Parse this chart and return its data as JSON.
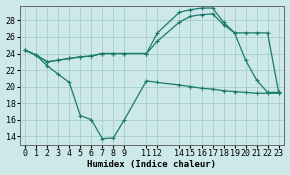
{
  "xlabel": "Humidex (Indice chaleur)",
  "bg_color": "#cce8e8",
  "grid_color": "#aacccc",
  "line_color": "#1a7a6e",
  "xlim": [
    -0.5,
    23.5
  ],
  "ylim": [
    13.0,
    29.8
  ],
  "yticks": [
    14,
    16,
    18,
    20,
    22,
    24,
    26,
    28
  ],
  "xtick_positions": [
    0,
    1,
    2,
    3,
    4,
    5,
    6,
    7,
    8,
    9,
    11,
    12,
    14,
    15,
    16,
    17,
    18,
    19,
    20,
    21,
    22,
    23
  ],
  "xtick_labels": [
    "0",
    "1",
    "2",
    "3",
    "4",
    "5",
    "6",
    "7",
    "8",
    "9",
    "11",
    "12",
    "14",
    "15",
    "16",
    "17",
    "18",
    "19",
    "20",
    "21",
    "22",
    "23"
  ],
  "line1_x": [
    0,
    1,
    2,
    3,
    4,
    5,
    6,
    7,
    8,
    9,
    11,
    12,
    14,
    15,
    16,
    17,
    18,
    19,
    20,
    21,
    22,
    23
  ],
  "line1_y": [
    24.4,
    23.8,
    23.0,
    23.2,
    23.4,
    23.6,
    23.7,
    24.0,
    24.0,
    24.0,
    24.0,
    26.5,
    29.0,
    29.3,
    29.5,
    29.5,
    27.8,
    26.5,
    23.2,
    20.8,
    19.3,
    19.3
  ],
  "line2_x": [
    0,
    1,
    2,
    3,
    4,
    5,
    6,
    7,
    8,
    9,
    11,
    12,
    14,
    15,
    16,
    17,
    18,
    19,
    20,
    21,
    22,
    23
  ],
  "line2_y": [
    24.4,
    23.8,
    23.0,
    23.2,
    23.4,
    23.6,
    23.7,
    24.0,
    24.0,
    24.0,
    24.0,
    25.5,
    27.8,
    28.5,
    28.7,
    28.8,
    27.5,
    26.5,
    26.5,
    26.5,
    26.5,
    19.3
  ],
  "line3_x": [
    0,
    1,
    2,
    3,
    4,
    5,
    6,
    7,
    8,
    9,
    11,
    12,
    14,
    15,
    16,
    17,
    18,
    19,
    20,
    21,
    22,
    23
  ],
  "line3_y": [
    24.4,
    23.8,
    22.5,
    21.5,
    20.5,
    16.5,
    16.0,
    13.7,
    13.8,
    16.0,
    20.7,
    20.5,
    20.2,
    20.0,
    19.8,
    19.7,
    19.5,
    19.4,
    19.3,
    19.2,
    19.2,
    19.2
  ]
}
